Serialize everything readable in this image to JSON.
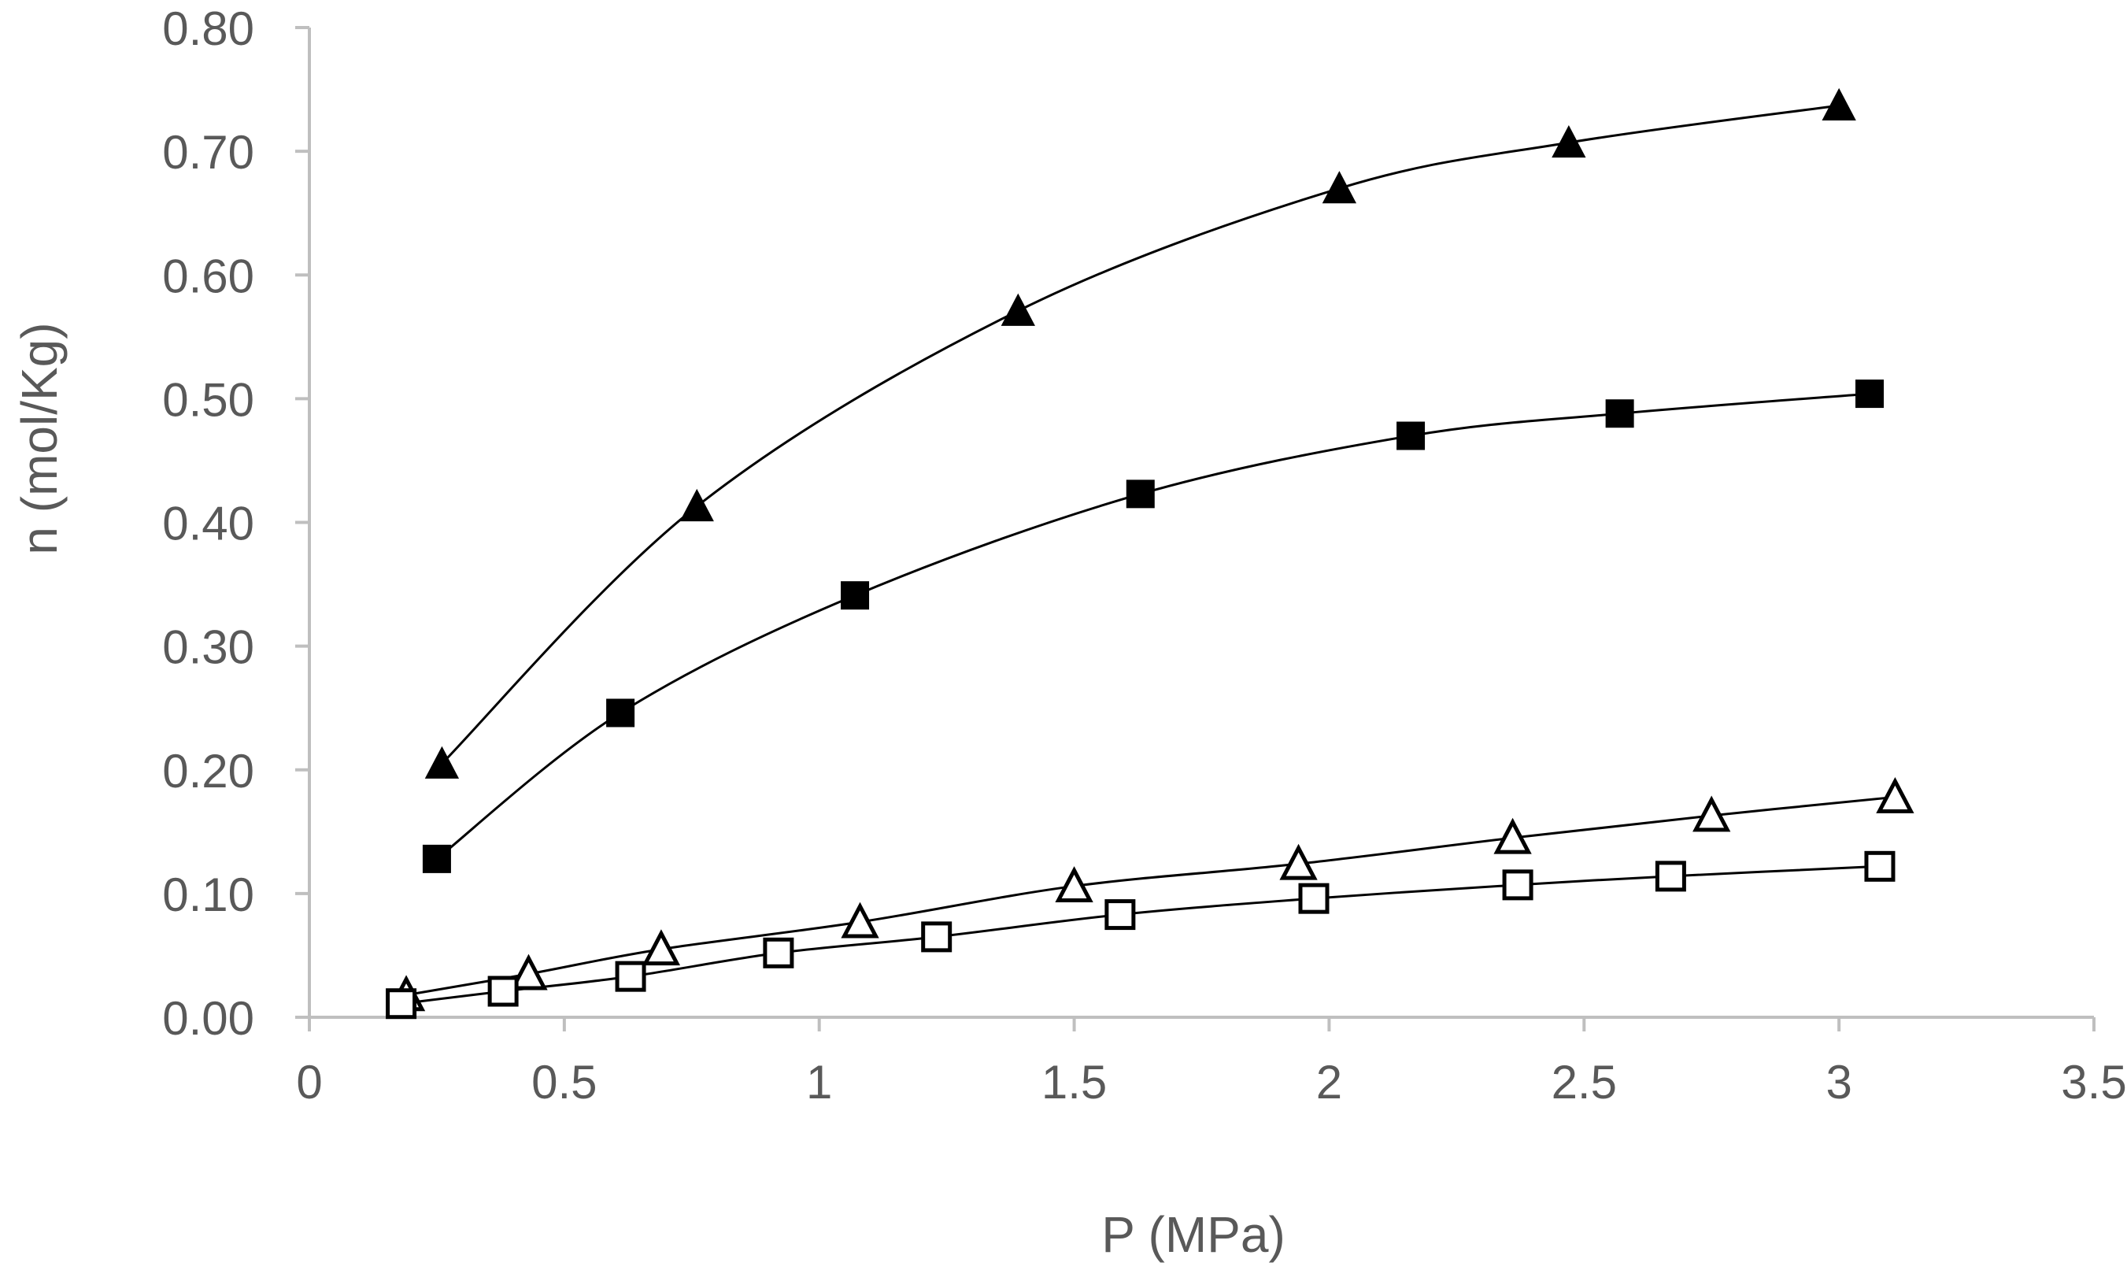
{
  "chart_data": {
    "type": "scatter",
    "title": "",
    "xlabel": "P (MPa)",
    "ylabel": "n (mol/Kg)",
    "xlim": [
      0,
      3.5
    ],
    "ylim": [
      0,
      0.8
    ],
    "x_ticks": [
      0,
      0.5,
      1,
      1.5,
      2,
      2.5,
      3,
      3.5
    ],
    "x_tick_labels": [
      "0",
      "0.5",
      "1",
      "1.5",
      "2",
      "2.5",
      "3",
      "3.5"
    ],
    "y_ticks": [
      0,
      0.1,
      0.2,
      0.3,
      0.4,
      0.5,
      0.6,
      0.7,
      0.8
    ],
    "y_tick_labels": [
      "0.00",
      "0.10",
      "0.20",
      "0.30",
      "0.40",
      "0.50",
      "0.60",
      "0.70",
      "0.80"
    ],
    "grid": false,
    "legend": "none",
    "colors": {
      "axis": "#bfbfbf",
      "text": "#595959",
      "series": "#000000"
    },
    "series": [
      {
        "name": "filled-triangle",
        "marker": "triangle",
        "filled": true,
        "x": [
          0.26,
          0.76,
          1.39,
          2.02,
          2.47,
          3.0
        ],
        "y": [
          0.205,
          0.413,
          0.571,
          0.67,
          0.707,
          0.737
        ]
      },
      {
        "name": "filled-square",
        "marker": "square",
        "filled": true,
        "x": [
          0.25,
          0.61,
          1.07,
          1.63,
          2.16,
          2.57,
          3.06
        ],
        "y": [
          0.128,
          0.246,
          0.341,
          0.423,
          0.47,
          0.488,
          0.504
        ]
      },
      {
        "name": "open-triangle",
        "marker": "triangle",
        "filled": false,
        "x": [
          0.19,
          0.43,
          0.69,
          1.08,
          1.5,
          1.94,
          2.36,
          2.75,
          3.11
        ],
        "y": [
          0.018,
          0.035,
          0.055,
          0.077,
          0.106,
          0.124,
          0.145,
          0.163,
          0.178
        ]
      },
      {
        "name": "open-square",
        "marker": "square",
        "filled": false,
        "x": [
          0.18,
          0.38,
          0.63,
          0.92,
          1.23,
          1.59,
          1.97,
          2.37,
          2.67,
          3.08
        ],
        "y": [
          0.011,
          0.021,
          0.033,
          0.052,
          0.065,
          0.083,
          0.096,
          0.107,
          0.114,
          0.122
        ]
      }
    ]
  }
}
